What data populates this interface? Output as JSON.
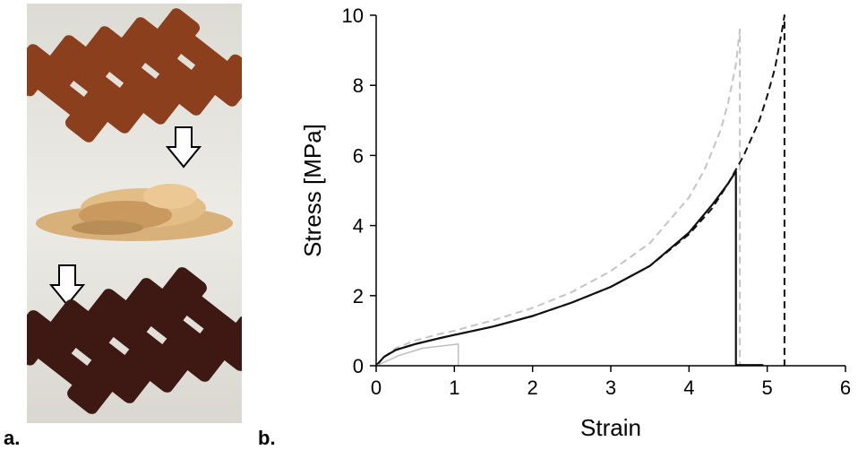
{
  "panel_labels": {
    "a": "a.",
    "b": "b."
  },
  "photo": {
    "steps": [
      "molded-dogbone-specimens",
      "shredded-material",
      "remolded-dogbone-specimens"
    ],
    "colors": {
      "background": "#e4e2dc",
      "specimen_original": "#8c3f1d",
      "shreds": "#d8b07a",
      "specimen_recycled": "#3e1812",
      "arrow": "#ffffff"
    }
  },
  "chart_data": {
    "type": "line",
    "xlabel": "Strain",
    "ylabel": "Stress [MPa]",
    "xlim": [
      0,
      6
    ],
    "ylim": [
      0,
      10
    ],
    "x_ticks": [
      "0",
      "1",
      "2",
      "3",
      "4",
      "5",
      "6"
    ],
    "y_ticks": [
      "0",
      "2",
      "4",
      "6",
      "8",
      "10"
    ],
    "grid": false,
    "legend": "none",
    "series": [
      {
        "style": "dashed",
        "color": "#c4c4c4",
        "x": [
          0,
          0.1,
          0.25,
          0.5,
          0.8,
          1.0,
          1.5,
          2.0,
          2.5,
          3.0,
          3.5,
          4.0,
          4.2,
          4.4,
          4.5,
          4.6,
          4.65,
          4.65
        ],
        "y": [
          0,
          0.25,
          0.5,
          0.72,
          0.9,
          1.0,
          1.3,
          1.65,
          2.1,
          2.7,
          3.5,
          4.8,
          5.6,
          6.7,
          7.5,
          8.6,
          9.6,
          0
        ]
      },
      {
        "style": "dashed",
        "color": "#111111",
        "x": [
          0,
          0.1,
          0.25,
          0.5,
          0.8,
          1.0,
          1.5,
          2.0,
          2.5,
          3.0,
          3.5,
          4.0,
          4.3,
          4.5,
          4.7,
          4.9,
          5.0,
          5.1,
          5.2,
          5.22,
          5.22
        ],
        "y": [
          0,
          0.25,
          0.45,
          0.62,
          0.78,
          0.88,
          1.12,
          1.42,
          1.8,
          2.25,
          2.85,
          3.75,
          4.5,
          5.2,
          6.0,
          7.0,
          7.7,
          8.5,
          9.7,
          10.0,
          0
        ]
      },
      {
        "style": "solid",
        "color": "#111111",
        "x": [
          0,
          0.1,
          0.25,
          0.5,
          0.8,
          1.0,
          1.5,
          2.0,
          2.5,
          3.0,
          3.5,
          4.0,
          4.3,
          4.5,
          4.6,
          4.6,
          4.95
        ],
        "y": [
          0,
          0.25,
          0.45,
          0.62,
          0.78,
          0.88,
          1.12,
          1.42,
          1.8,
          2.25,
          2.85,
          3.8,
          4.6,
          5.2,
          5.55,
          0.02,
          0.02
        ]
      },
      {
        "style": "solid-thin",
        "color": "#bdbdbd",
        "x": [
          0,
          0.3,
          0.6,
          1.05,
          1.05
        ],
        "y": [
          0,
          0.3,
          0.5,
          0.62,
          0
        ]
      }
    ]
  }
}
